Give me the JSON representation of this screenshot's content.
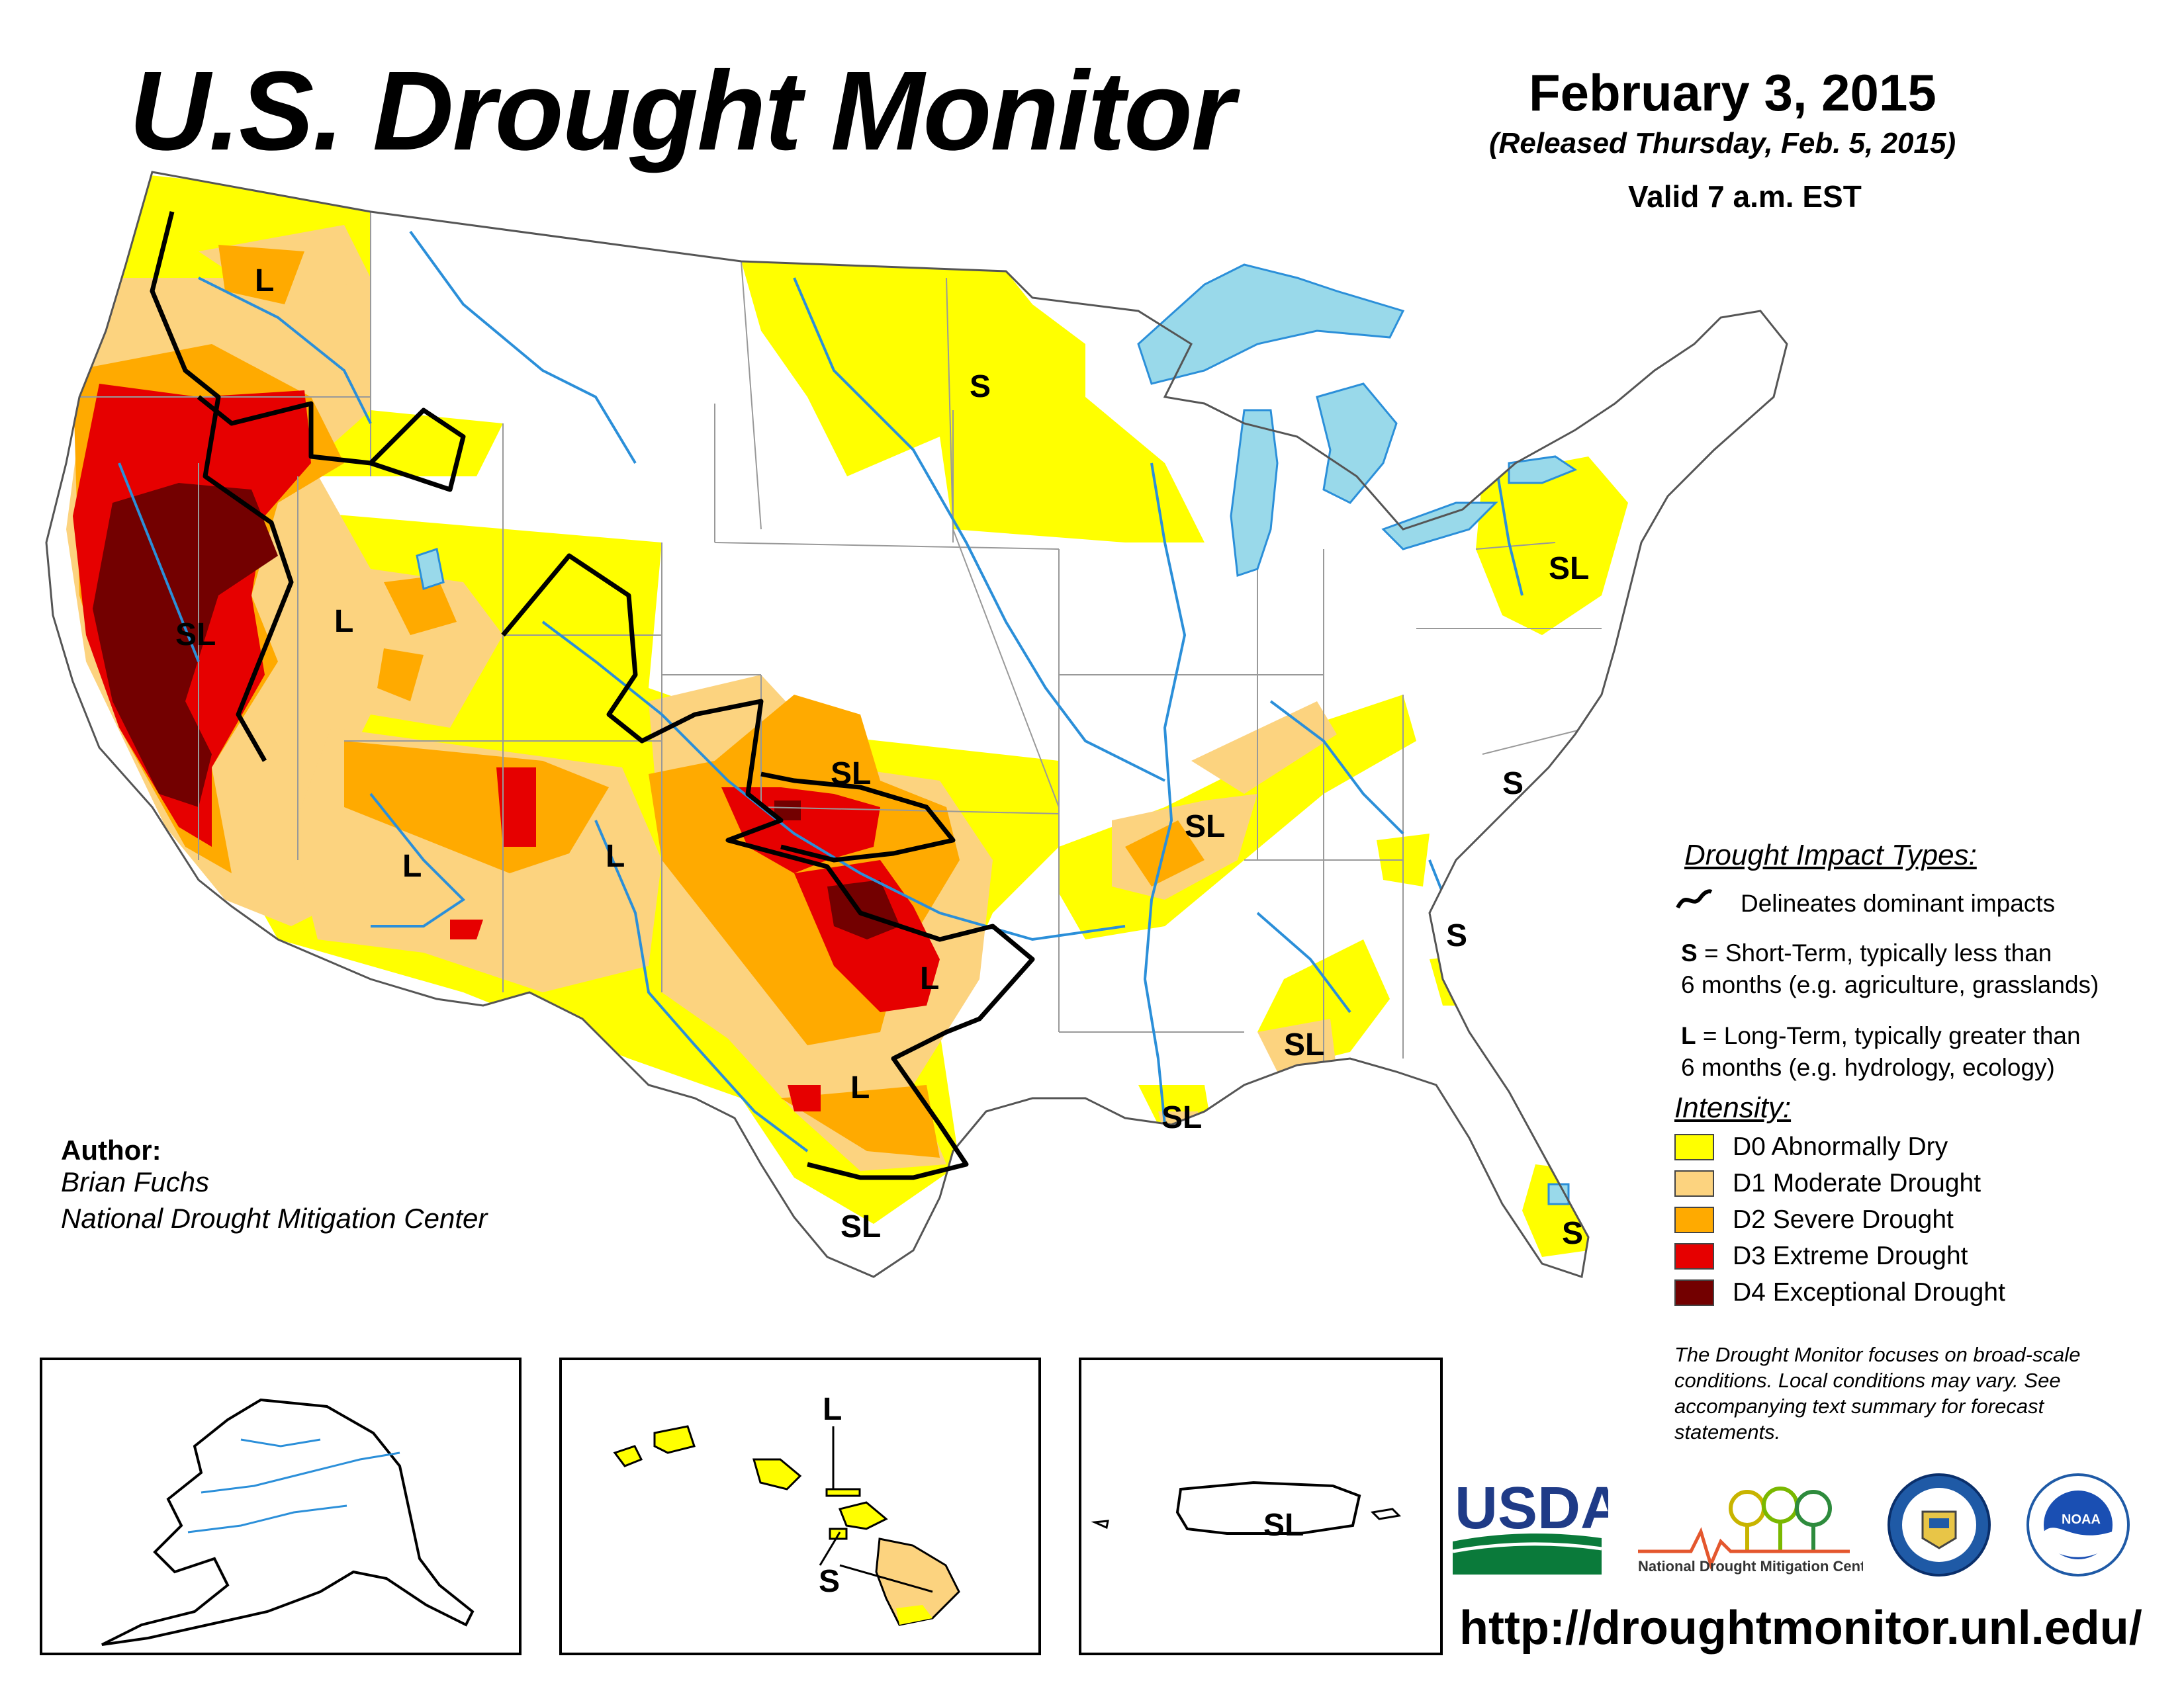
{
  "header": {
    "title": "U.S. Drought Monitor",
    "date": "February 3, 2015",
    "released": "(Released Thursday, Feb. 5, 2015)",
    "valid": "Valid 7 a.m. EST"
  },
  "colors": {
    "D0": "#ffff00",
    "D1": "#fcd37f",
    "D2": "#ffaa00",
    "D3": "#e60000",
    "D4": "#730000",
    "water": "#99d9ea",
    "rivers": "#2b8fd9",
    "boundaries": "#999999"
  },
  "map_labels": {
    "or_l": "L",
    "mn_s": "S",
    "ca_sl": "SL",
    "ut_l": "L",
    "az_l": "L",
    "nm_l": "L",
    "ks_sl": "SL",
    "tx_l": "L",
    "tx_l2": "L",
    "tx_sl": "SL",
    "ar_sl": "SL",
    "pa_sl": "SL",
    "va_s": "S",
    "sc_s": "S",
    "al_sl": "SL",
    "la_sl": "SL",
    "fl_s": "S",
    "hi_l": "L",
    "hi_s": "S",
    "pr_sl": "SL"
  },
  "legend": {
    "impact_title": "Drought Impact Types:",
    "delineates": "Delineates dominant impacts",
    "s_key": "S",
    "s_line1": " = Short-Term, typically less than",
    "s_line2": "6 months (e.g. agriculture, grasslands)",
    "l_key": "L",
    "l_line1": " = Long-Term, typically greater than",
    "l_line2": "6 months (e.g. hydrology, ecology)",
    "intensity_title": "Intensity:",
    "intensity": [
      {
        "label": "D0 Abnormally Dry",
        "color": "#ffff00"
      },
      {
        "label": "D1 Moderate Drought",
        "color": "#fcd37f"
      },
      {
        "label": "D2 Severe Drought",
        "color": "#ffaa00"
      },
      {
        "label": "D3 Extreme Drought",
        "color": "#e60000"
      },
      {
        "label": "D4 Exceptional Drought",
        "color": "#730000"
      }
    ]
  },
  "author": {
    "label": "Author:",
    "name": "Brian Fuchs",
    "org": "National Drought Mitigation Center"
  },
  "disclaimer": "The Drought Monitor focuses on broad-scale conditions. Local conditions may vary. See accompanying text summary for forecast statements.",
  "logos": {
    "usda": "USDA",
    "ndmc": "National Drought Mitigation Center",
    "doc_icon": "department-of-commerce-seal-icon",
    "noaa": "NOAA"
  },
  "url": "http://droughtmonitor.unl.edu/"
}
